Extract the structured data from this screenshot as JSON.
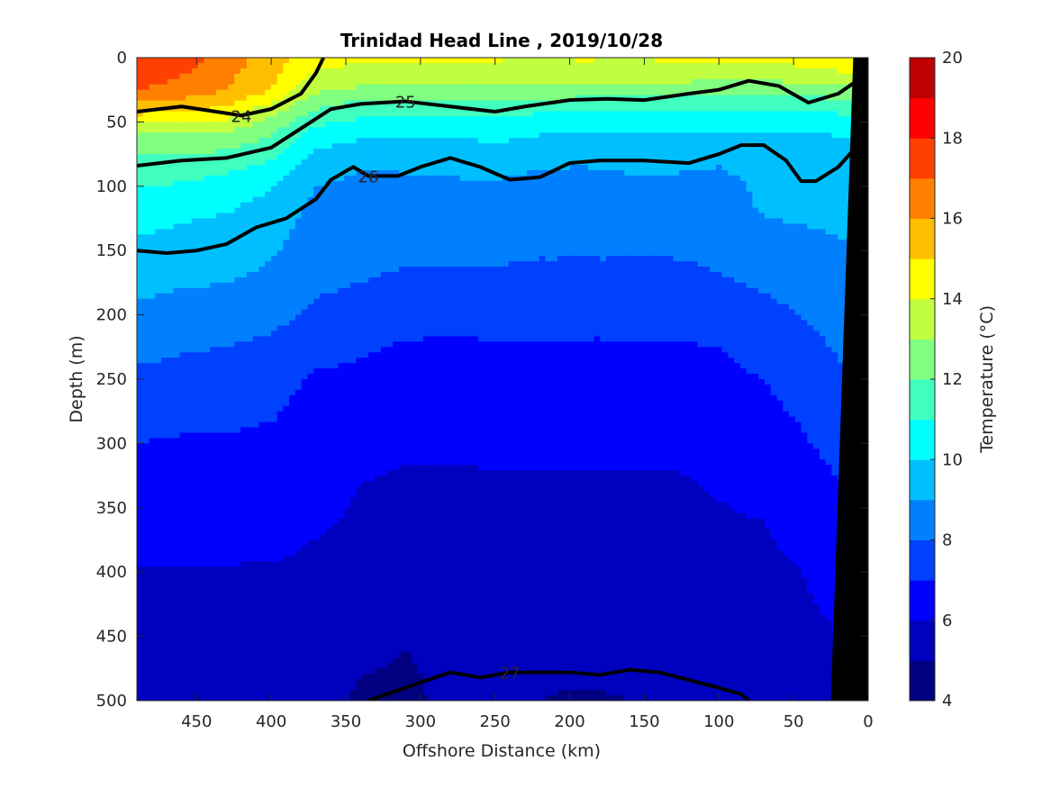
{
  "chart_data": {
    "type": "contour",
    "title": "Trinidad Head Line , 2019/10/28",
    "xlabel": "Offshore Distance (km)",
    "ylabel": "Depth (m)",
    "colorbar_label": "Temperature (°C)",
    "xlim": [
      490,
      0
    ],
    "ylim": [
      0,
      500
    ],
    "x_reversed": true,
    "y_reversed": true,
    "xticks": [
      450,
      400,
      350,
      300,
      250,
      200,
      150,
      100,
      50,
      0
    ],
    "yticks": [
      0,
      50,
      100,
      150,
      200,
      250,
      300,
      350,
      400,
      450,
      500
    ],
    "colorbar_ticks": [
      4,
      6,
      8,
      10,
      12,
      14,
      16,
      18,
      20
    ],
    "colorbar_limits": [
      4,
      20
    ],
    "colorbar_levels": [
      {
        "range": [
          4,
          5
        ],
        "color": "#000080"
      },
      {
        "range": [
          5,
          6
        ],
        "color": "#0000BF"
      },
      {
        "range": [
          6,
          7
        ],
        "color": "#0000FF"
      },
      {
        "range": [
          7,
          8
        ],
        "color": "#0040FF"
      },
      {
        "range": [
          8,
          9
        ],
        "color": "#0080FF"
      },
      {
        "range": [
          9,
          10
        ],
        "color": "#00BFFF"
      },
      {
        "range": [
          10,
          11
        ],
        "color": "#00FFFF"
      },
      {
        "range": [
          11,
          12
        ],
        "color": "#40FFBF"
      },
      {
        "range": [
          12,
          13
        ],
        "color": "#80FF80"
      },
      {
        "range": [
          13,
          14
        ],
        "color": "#BFFF40"
      },
      {
        "range": [
          14,
          15
        ],
        "color": "#FFFF00"
      },
      {
        "range": [
          15,
          16
        ],
        "color": "#FFBF00"
      },
      {
        "range": [
          16,
          17
        ],
        "color": "#FF8000"
      },
      {
        "range": [
          17,
          18
        ],
        "color": "#FF4000"
      },
      {
        "range": [
          18,
          19
        ],
        "color": "#FF0000"
      },
      {
        "range": [
          19,
          20
        ],
        "color": "#BF0000"
      }
    ],
    "temperature_field": {
      "x": [
        490,
        460,
        430,
        400,
        370,
        340,
        310,
        280,
        250,
        220,
        190,
        160,
        130,
        100,
        70,
        45,
        25,
        10
      ],
      "depths": [
        0,
        10,
        25,
        40,
        60,
        80,
        100,
        125,
        150,
        175,
        200,
        225,
        250,
        275,
        300,
        330,
        360,
        400,
        440,
        480,
        500
      ],
      "values": [
        [
          18.0,
          17.5,
          16.5,
          15.5,
          14.3,
          14.1,
          14.1,
          14.2,
          14.1,
          14.0,
          14.1,
          14.0,
          14.1,
          14.2,
          14.1,
          14.4,
          14.6,
          14.8
        ],
        [
          17.6,
          17.2,
          16.3,
          15.4,
          14.0,
          13.8,
          13.8,
          13.7,
          13.7,
          13.7,
          13.7,
          13.7,
          13.8,
          13.7,
          13.7,
          13.8,
          14.0,
          14.1
        ],
        [
          17.0,
          16.6,
          16.0,
          15.0,
          13.2,
          12.8,
          12.8,
          12.6,
          12.6,
          12.7,
          12.6,
          12.5,
          12.5,
          12.4,
          12.4,
          12.5,
          12.6,
          12.8
        ],
        [
          15.5,
          15.2,
          14.8,
          13.5,
          12.0,
          11.4,
          11.3,
          11.3,
          11.4,
          11.2,
          11.1,
          11.0,
          11.2,
          11.1,
          11.0,
          11.1,
          11.2,
          11.3
        ],
        [
          13.0,
          13.0,
          12.8,
          12.0,
          10.5,
          10.2,
          10.2,
          10.1,
          10.3,
          10.0,
          9.9,
          9.9,
          10.0,
          9.8,
          9.8,
          9.9,
          10.0,
          10.1
        ],
        [
          11.8,
          11.7,
          11.5,
          11.0,
          9.6,
          9.2,
          9.2,
          9.2,
          9.3,
          9.1,
          9.1,
          9.2,
          9.2,
          9.1,
          9.3,
          9.5,
          9.6,
          9.8
        ],
        [
          11.0,
          10.9,
          10.5,
          10.1,
          9.0,
          8.7,
          8.8,
          8.9,
          8.9,
          8.8,
          8.7,
          8.8,
          8.8,
          8.7,
          9.2,
          9.4,
          9.5,
          9.6
        ],
        [
          10.3,
          10.1,
          9.9,
          9.5,
          8.7,
          8.5,
          8.5,
          8.6,
          8.6,
          8.5,
          8.4,
          8.5,
          8.5,
          8.6,
          9.0,
          9.1,
          9.2,
          9.3
        ],
        [
          9.8,
          9.6,
          9.4,
          9.1,
          8.5,
          8.3,
          8.2,
          8.2,
          8.2,
          8.1,
          8.1,
          8.1,
          8.1,
          8.2,
          8.4,
          8.6,
          8.8,
          8.9
        ],
        [
          9.3,
          9.1,
          9.0,
          8.8,
          8.2,
          8.0,
          7.8,
          7.8,
          7.8,
          7.7,
          7.7,
          7.7,
          7.7,
          7.9,
          8.1,
          8.3,
          8.5,
          8.6
        ],
        [
          8.8,
          8.6,
          8.5,
          8.3,
          7.8,
          7.5,
          7.4,
          7.4,
          7.4,
          7.3,
          7.3,
          7.3,
          7.4,
          7.5,
          7.8,
          8.0,
          8.3,
          8.4
        ],
        [
          8.3,
          8.1,
          8.0,
          7.8,
          7.3,
          7.1,
          6.9,
          6.8,
          6.9,
          6.9,
          6.9,
          6.9,
          6.9,
          7.0,
          7.3,
          7.7,
          8.0,
          8.2
        ],
        [
          7.8,
          7.7,
          7.6,
          7.3,
          6.9,
          6.8,
          6.7,
          6.6,
          6.6,
          6.6,
          6.6,
          6.6,
          6.6,
          6.8,
          7.0,
          7.4,
          7.8,
          8.0
        ],
        [
          7.4,
          7.3,
          7.2,
          7.1,
          6.7,
          6.6,
          6.5,
          6.4,
          6.4,
          6.4,
          6.4,
          6.4,
          6.4,
          6.6,
          6.8,
          7.1,
          7.5,
          7.7
        ],
        [
          7.0,
          6.9,
          6.9,
          6.8,
          6.5,
          6.4,
          6.1,
          6.1,
          6.2,
          6.2,
          6.2,
          6.2,
          6.2,
          6.4,
          6.6,
          6.9,
          7.2,
          7.4
        ],
        [
          6.9,
          6.8,
          6.8,
          6.6,
          6.3,
          6.0,
          5.9,
          5.9,
          5.9,
          5.9,
          5.9,
          5.9,
          5.9,
          6.1,
          6.3,
          6.6,
          6.9,
          7.1
        ],
        [
          6.7,
          6.6,
          6.6,
          6.4,
          6.1,
          5.9,
          5.8,
          5.7,
          5.7,
          5.7,
          5.7,
          5.7,
          5.8,
          5.9,
          6.0,
          6.3,
          6.6,
          6.8
        ],
        [
          5.9,
          5.9,
          5.9,
          5.9,
          5.8,
          5.6,
          5.5,
          5.5,
          5.5,
          5.5,
          5.5,
          5.5,
          5.5,
          5.6,
          5.8,
          6.0,
          6.3,
          6.5
        ],
        [
          5.7,
          5.7,
          5.7,
          5.6,
          5.5,
          5.4,
          5.1,
          5.4,
          5.4,
          5.4,
          5.4,
          5.4,
          5.4,
          5.5,
          5.6,
          5.8,
          6.0,
          6.2
        ],
        [
          5.5,
          5.5,
          5.5,
          5.4,
          5.3,
          5.0,
          4.9,
          5.2,
          5.2,
          5.1,
          5.1,
          5.1,
          5.2,
          5.3,
          5.4,
          5.6,
          5.8,
          6.0
        ],
        [
          5.4,
          5.4,
          5.4,
          5.3,
          5.2,
          4.9,
          4.9,
          5.1,
          5.0,
          5.0,
          4.9,
          5.0,
          5.1,
          5.2,
          5.3,
          5.5,
          5.7,
          5.9
        ]
      ]
    },
    "density_contours": [
      {
        "label": "24",
        "points": [
          [
            490,
            42
          ],
          [
            460,
            38
          ],
          [
            420,
            45
          ],
          [
            400,
            40
          ],
          [
            380,
            28
          ],
          [
            370,
            12
          ],
          [
            365,
            0
          ]
        ]
      },
      {
        "label": "25",
        "points": [
          [
            490,
            84
          ],
          [
            460,
            80
          ],
          [
            430,
            78
          ],
          [
            400,
            70
          ],
          [
            380,
            55
          ],
          [
            360,
            40
          ],
          [
            340,
            36
          ],
          [
            310,
            34
          ],
          [
            280,
            38
          ],
          [
            250,
            42
          ],
          [
            230,
            38
          ],
          [
            200,
            33
          ],
          [
            175,
            32
          ],
          [
            150,
            33
          ],
          [
            120,
            28
          ],
          [
            100,
            25
          ],
          [
            80,
            18
          ],
          [
            60,
            22
          ],
          [
            40,
            35
          ],
          [
            20,
            28
          ],
          [
            10,
            20
          ]
        ]
      },
      {
        "label": "26",
        "points": [
          [
            490,
            150
          ],
          [
            470,
            152
          ],
          [
            450,
            150
          ],
          [
            430,
            145
          ],
          [
            410,
            132
          ],
          [
            390,
            125
          ],
          [
            370,
            110
          ],
          [
            360,
            95
          ],
          [
            345,
            85
          ],
          [
            335,
            92
          ],
          [
            315,
            92
          ],
          [
            300,
            85
          ],
          [
            280,
            78
          ],
          [
            260,
            85
          ],
          [
            240,
            95
          ],
          [
            220,
            93
          ],
          [
            200,
            82
          ],
          [
            180,
            80
          ],
          [
            150,
            80
          ],
          [
            120,
            82
          ],
          [
            100,
            75
          ],
          [
            85,
            68
          ],
          [
            70,
            68
          ],
          [
            55,
            80
          ],
          [
            45,
            96
          ],
          [
            35,
            96
          ],
          [
            20,
            85
          ],
          [
            10,
            72
          ]
        ]
      },
      {
        "label": "27",
        "points": [
          [
            335,
            500
          ],
          [
            310,
            490
          ],
          [
            290,
            482
          ],
          [
            280,
            478
          ],
          [
            260,
            482
          ],
          [
            240,
            478
          ],
          [
            220,
            478
          ],
          [
            200,
            478
          ],
          [
            180,
            480
          ],
          [
            160,
            476
          ],
          [
            140,
            478
          ],
          [
            120,
            484
          ],
          [
            100,
            490
          ],
          [
            85,
            495
          ],
          [
            80,
            500
          ]
        ]
      }
    ],
    "seafloor": {
      "points": [
        [
          10,
          0
        ],
        [
          25,
          500
        ]
      ],
      "fill": "black"
    }
  }
}
